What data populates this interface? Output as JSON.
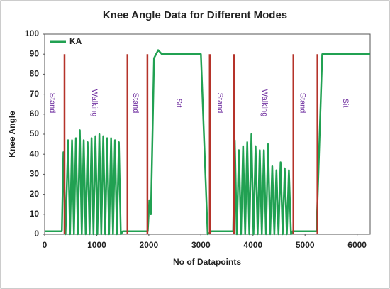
{
  "chart_data": {
    "type": "line",
    "title": "Knee Angle Data for Different Modes",
    "x_label": "No of Datapoints",
    "y_label": "Knee Angle",
    "xlim": [
      0,
      6250
    ],
    "ylim": [
      0,
      100
    ],
    "xticks": [
      0,
      1000,
      2000,
      3000,
      4000,
      5000,
      6000
    ],
    "yticks": [
      0,
      10,
      20,
      30,
      40,
      50,
      60,
      70,
      80,
      90,
      100
    ],
    "grid": false,
    "legend": "upper left",
    "x": [
      0,
      330,
      360,
      400,
      450,
      487,
      525,
      562,
      600,
      637,
      675,
      712,
      750,
      787,
      825,
      862,
      900,
      937,
      975,
      1012,
      1050,
      1087,
      1125,
      1162,
      1200,
      1237,
      1275,
      1312,
      1350,
      1387,
      1425,
      1462,
      1500,
      1980,
      2010,
      2040,
      2100,
      2180,
      2250,
      3000,
      3130,
      3200,
      3620,
      3650,
      3690,
      3730,
      3770,
      3810,
      3850,
      3890,
      3930,
      3970,
      4010,
      4050,
      4090,
      4130,
      4170,
      4210,
      4250,
      4290,
      4330,
      4370,
      4410,
      4450,
      4490,
      4530,
      4570,
      4610,
      4650,
      4690,
      4730,
      4760,
      5220,
      5330,
      6250
    ],
    "series": [
      {
        "name": "KA",
        "color": "#21a152",
        "values": [
          1.5,
          1.5,
          41,
          0,
          47,
          0,
          47,
          0,
          48,
          0,
          52,
          0,
          47,
          0,
          46,
          0,
          48,
          0,
          49,
          0,
          50,
          0,
          49,
          0,
          48,
          0,
          48,
          0,
          47,
          0,
          46,
          0,
          1.5,
          1.5,
          17,
          10,
          88,
          92,
          90,
          90,
          0,
          1.5,
          1.5,
          47,
          0,
          42,
          0,
          44,
          0,
          46,
          0,
          50,
          0,
          44,
          0,
          42,
          0,
          42,
          0,
          45,
          0,
          34,
          0,
          32,
          0,
          36,
          0,
          33,
          0,
          32,
          0,
          1.5,
          1.5,
          90,
          90
        ]
      }
    ],
    "boundaries": {
      "color": "#b5332a",
      "y": 90,
      "x": [
        381,
        1590,
        1973,
        3170,
        3633,
        4776,
        5238
      ]
    },
    "annotations": [
      {
        "text": "Stand",
        "x": 140
      },
      {
        "text": "Walking",
        "x": 950
      },
      {
        "text": "Stand",
        "x": 1740
      },
      {
        "text": "Sit",
        "x": 2570
      },
      {
        "text": "Stand",
        "x": 3360
      },
      {
        "text": "Walking",
        "x": 4220
      },
      {
        "text": "Stand",
        "x": 4950
      },
      {
        "text": "Sit",
        "x": 5770
      }
    ]
  }
}
